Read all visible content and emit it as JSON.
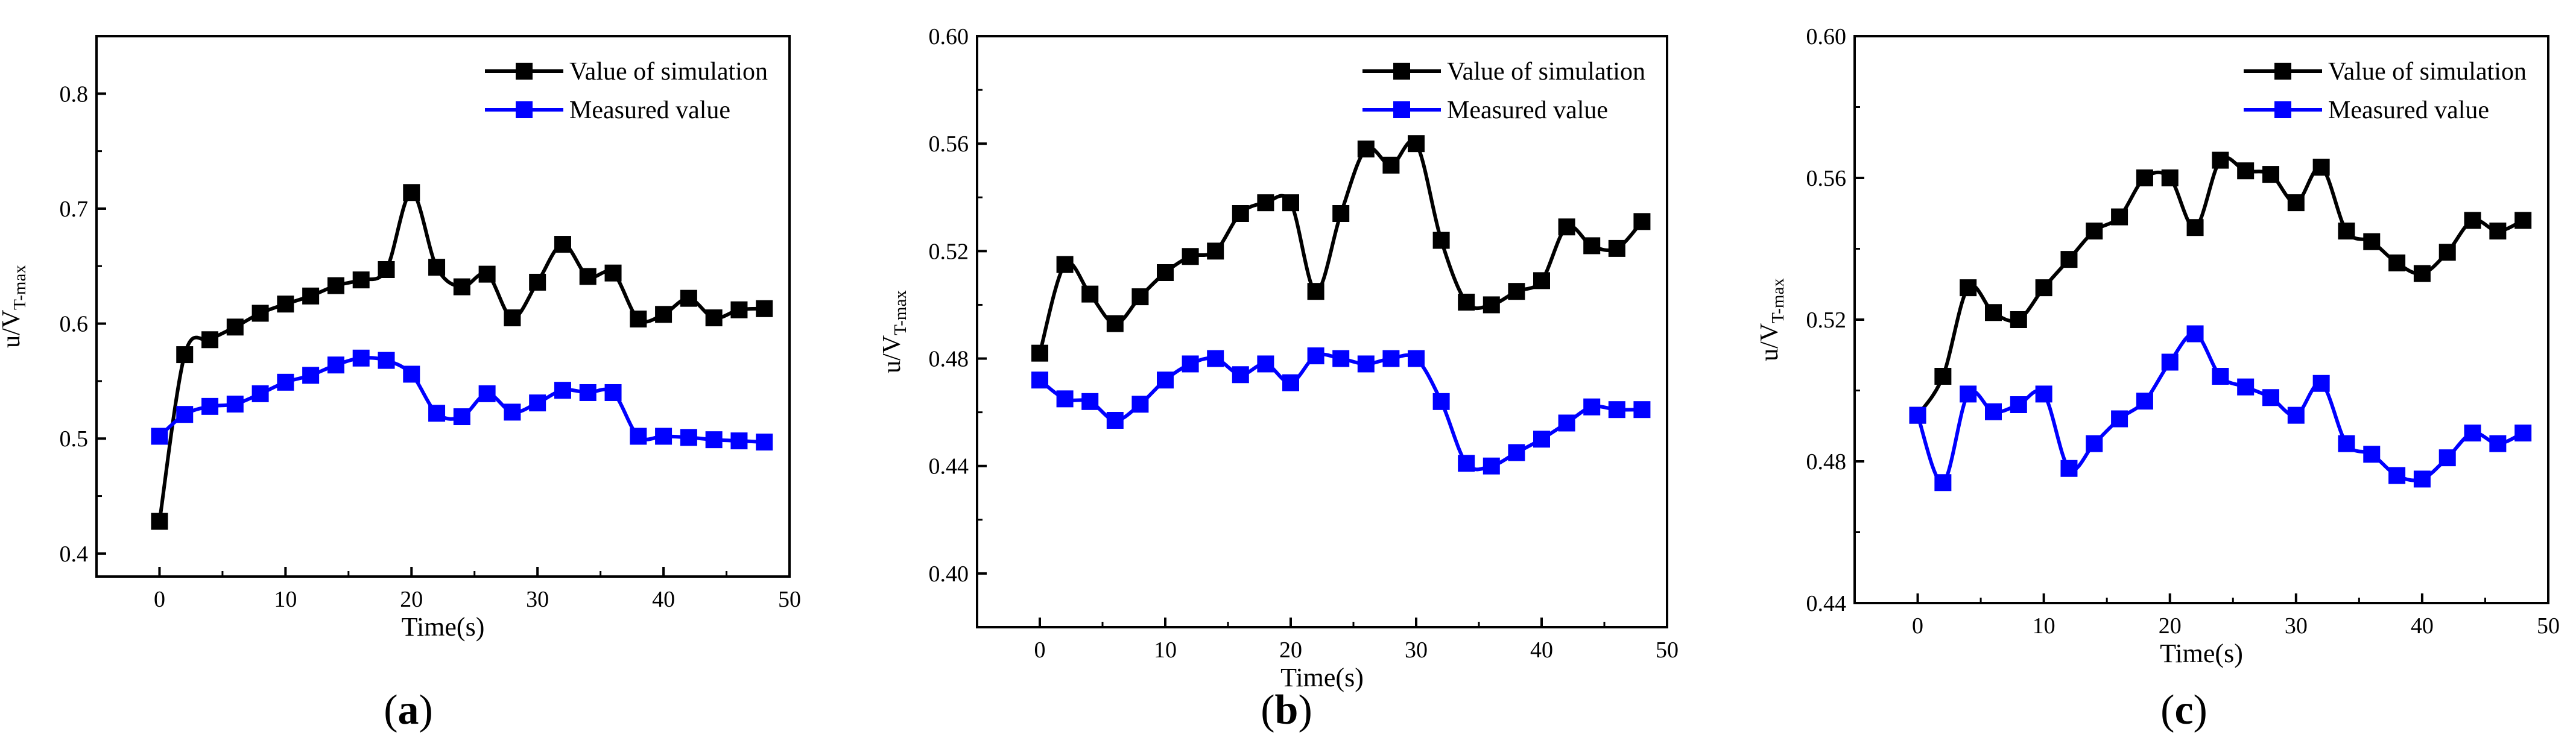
{
  "colors": {
    "simulation": "#000000",
    "measured": "#0000ff",
    "axis": "#000000"
  },
  "chart_data": [
    {
      "type": "line",
      "panel_label": "(a)",
      "label_letter": "a",
      "xlabel": "Time(s)",
      "ylabel_main": "u/V",
      "ylabel_sub": "T-max",
      "xlim": [
        -5,
        50
      ],
      "ylim": [
        0.38,
        0.85
      ],
      "xticks": [
        0,
        10,
        20,
        30,
        40,
        50
      ],
      "xtick_labels": [
        "0",
        "10",
        "20",
        "30",
        "40",
        "50"
      ],
      "yticks": [
        0.4,
        0.5,
        0.6,
        0.7,
        0.8
      ],
      "ytick_labels": [
        "0.4",
        "0.5",
        "0.6",
        "0.7",
        "0.8"
      ],
      "legend_position": "top-right",
      "x": [
        0,
        2,
        4,
        6,
        8,
        10,
        12,
        14,
        16,
        18,
        20,
        22,
        24,
        26,
        28,
        30,
        32,
        34,
        36,
        38,
        40,
        42,
        44,
        46,
        48
      ],
      "series": [
        {
          "name": "Value of simulation",
          "color_key": "simulation",
          "values": [
            0.428,
            0.573,
            0.586,
            0.597,
            0.609,
            0.617,
            0.624,
            0.633,
            0.638,
            0.647,
            0.714,
            0.649,
            0.632,
            0.643,
            0.605,
            0.636,
            0.669,
            0.641,
            0.644,
            0.604,
            0.608,
            0.622,
            0.605,
            0.612,
            0.613
          ]
        },
        {
          "name": "Measured value",
          "color_key": "measured",
          "values": [
            0.502,
            0.521,
            0.528,
            0.53,
            0.539,
            0.549,
            0.555,
            0.564,
            0.57,
            0.568,
            0.556,
            0.522,
            0.519,
            0.539,
            0.523,
            0.531,
            0.542,
            0.54,
            0.54,
            0.502,
            0.502,
            0.501,
            0.499,
            0.498,
            0.497
          ]
        }
      ]
    },
    {
      "type": "line",
      "panel_label": "(b)",
      "label_letter": "b",
      "xlabel": "Time(s)",
      "ylabel_main": "u/V",
      "ylabel_sub": "T-max",
      "xlim": [
        -5,
        50
      ],
      "ylim": [
        0.38,
        0.6
      ],
      "xticks": [
        0,
        10,
        20,
        30,
        40,
        50
      ],
      "xtick_labels": [
        "0",
        "10",
        "20",
        "30",
        "40",
        "50"
      ],
      "yticks": [
        0.4,
        0.44,
        0.48,
        0.52,
        0.56,
        0.6
      ],
      "ytick_labels": [
        "0.40",
        "0.44",
        "0.48",
        "0.52",
        "0.56",
        "0.60"
      ],
      "legend_position": "top-right",
      "x": [
        0,
        2,
        4,
        6,
        8,
        10,
        12,
        14,
        16,
        18,
        20,
        22,
        24,
        26,
        28,
        30,
        32,
        34,
        36,
        38,
        40,
        42,
        44,
        46,
        48
      ],
      "series": [
        {
          "name": "Value of simulation",
          "color_key": "simulation",
          "values": [
            0.482,
            0.515,
            0.504,
            0.493,
            0.503,
            0.512,
            0.518,
            0.52,
            0.534,
            0.538,
            0.538,
            0.505,
            0.534,
            0.558,
            0.552,
            0.56,
            0.524,
            0.501,
            0.5,
            0.505,
            0.509,
            0.529,
            0.522,
            0.521,
            0.531
          ]
        },
        {
          "name": "Measured value",
          "color_key": "measured",
          "values": [
            0.472,
            0.465,
            0.464,
            0.457,
            0.463,
            0.472,
            0.478,
            0.48,
            0.474,
            0.478,
            0.471,
            0.481,
            0.48,
            0.478,
            0.48,
            0.48,
            0.464,
            0.441,
            0.44,
            0.445,
            0.45,
            0.456,
            0.462,
            0.461,
            0.461
          ]
        }
      ]
    },
    {
      "type": "line",
      "panel_label": "(c)",
      "label_letter": "c",
      "xlabel": "Time(s)",
      "ylabel_main": "u/V",
      "ylabel_sub": "T-max",
      "xlim": [
        -5,
        50
      ],
      "ylim": [
        0.44,
        0.6
      ],
      "xticks": [
        0,
        10,
        20,
        30,
        40,
        50
      ],
      "xtick_labels": [
        "0",
        "10",
        "20",
        "30",
        "40",
        "50"
      ],
      "yticks": [
        0.44,
        0.48,
        0.52,
        0.56,
        0.6
      ],
      "ytick_labels": [
        "0.44",
        "0.48",
        "0.52",
        "0.56",
        "0.60"
      ],
      "legend_position": "top-right",
      "x": [
        0,
        2,
        4,
        6,
        8,
        10,
        12,
        14,
        16,
        18,
        20,
        22,
        24,
        26,
        28,
        30,
        32,
        34,
        36,
        38,
        40,
        42,
        44,
        46,
        48
      ],
      "series": [
        {
          "name": "Value of simulation",
          "color_key": "simulation",
          "values": [
            0.493,
            0.504,
            0.529,
            0.522,
            0.52,
            0.529,
            0.537,
            0.545,
            0.549,
            0.56,
            0.56,
            0.546,
            0.565,
            0.562,
            0.561,
            0.553,
            0.563,
            0.545,
            0.542,
            0.536,
            0.533,
            0.539,
            0.548,
            0.545,
            0.548
          ]
        },
        {
          "name": "Measured value",
          "color_key": "measured",
          "values": [
            0.493,
            0.474,
            0.499,
            0.494,
            0.496,
            0.499,
            0.478,
            0.485,
            0.492,
            0.497,
            0.508,
            0.516,
            0.504,
            0.501,
            0.498,
            0.493,
            0.502,
            0.485,
            0.482,
            0.476,
            0.475,
            0.481,
            0.488,
            0.485,
            0.488
          ]
        }
      ]
    }
  ]
}
